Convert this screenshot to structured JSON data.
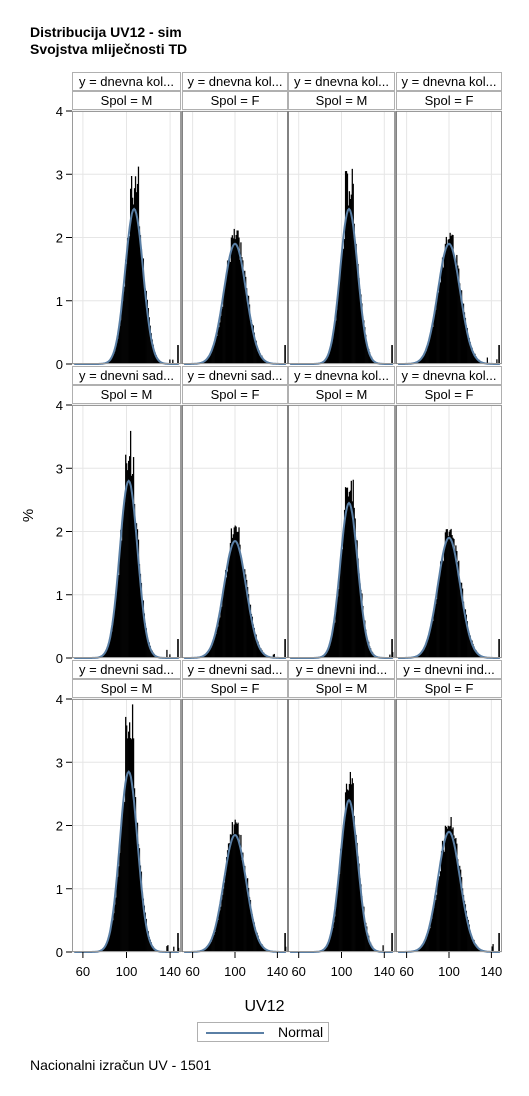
{
  "title": "Distribucija UV12 - sim",
  "subtitle": "Svojstva mliječnosti TD",
  "footer": "Nacionalni izračun UV - 1501",
  "legend": {
    "label": "Normal",
    "color": "#5a7fa5"
  },
  "chart_data": {
    "type": "bar",
    "xlabel": "UV12",
    "ylabel": "%",
    "xlim": [
      50,
      150
    ],
    "ylim": [
      0,
      4
    ],
    "xticks": [
      60,
      100,
      140
    ],
    "yticks": [
      0,
      1,
      2,
      3,
      4
    ],
    "grid": true,
    "bar_color": "#000000",
    "curve_color": "#5a7fa5",
    "panels": [
      {
        "row": 0,
        "col": 0,
        "y_header": "y = dnevna kol...",
        "sex_header": "Spol = M",
        "mean": 107,
        "peak": 2.45,
        "hist_peak": 3.25
      },
      {
        "row": 0,
        "col": 1,
        "y_header": "y = dnevna kol...",
        "sex_header": "Spol = F",
        "mean": 100,
        "peak": 1.9,
        "hist_peak": 2.05
      },
      {
        "row": 0,
        "col": 2,
        "y_header": "y = dnevna kol...",
        "sex_header": "Spol = M",
        "mean": 107,
        "peak": 2.45,
        "hist_peak": 3.1
      },
      {
        "row": 0,
        "col": 3,
        "y_header": "y = dnevna kol...",
        "sex_header": "Spol = F",
        "mean": 100,
        "peak": 1.9,
        "hist_peak": 2.05
      },
      {
        "row": 1,
        "col": 0,
        "y_header": "y = dnevni sad...",
        "sex_header": "Spol = M",
        "mean": 102,
        "peak": 2.8,
        "hist_peak": 3.95
      },
      {
        "row": 1,
        "col": 1,
        "y_header": "y = dnevni sad...",
        "sex_header": "Spol = F",
        "mean": 100,
        "peak": 1.85,
        "hist_peak": 2.1
      },
      {
        "row": 1,
        "col": 2,
        "y_header": "y = dnevna kol...",
        "sex_header": "Spol = M",
        "mean": 107,
        "peak": 2.45,
        "hist_peak": 2.85
      },
      {
        "row": 1,
        "col": 3,
        "y_header": "y = dnevna kol...",
        "sex_header": "Spol = F",
        "mean": 100,
        "peak": 1.9,
        "hist_peak": 2.05
      },
      {
        "row": 2,
        "col": 0,
        "y_header": "y = dnevni sad...",
        "sex_header": "Spol = M",
        "mean": 102,
        "peak": 2.85,
        "hist_peak": 3.95
      },
      {
        "row": 2,
        "col": 1,
        "y_header": "y = dnevni sad...",
        "sex_header": "Spol = F",
        "mean": 100,
        "peak": 1.85,
        "hist_peak": 2.1
      },
      {
        "row": 2,
        "col": 2,
        "y_header": "y = dnevni ind...",
        "sex_header": "Spol = M",
        "mean": 107,
        "peak": 2.4,
        "hist_peak": 2.85
      },
      {
        "row": 2,
        "col": 3,
        "y_header": "y = dnevni ind...",
        "sex_header": "Spol = F",
        "mean": 100,
        "peak": 1.9,
        "hist_peak": 2.0
      }
    ]
  }
}
